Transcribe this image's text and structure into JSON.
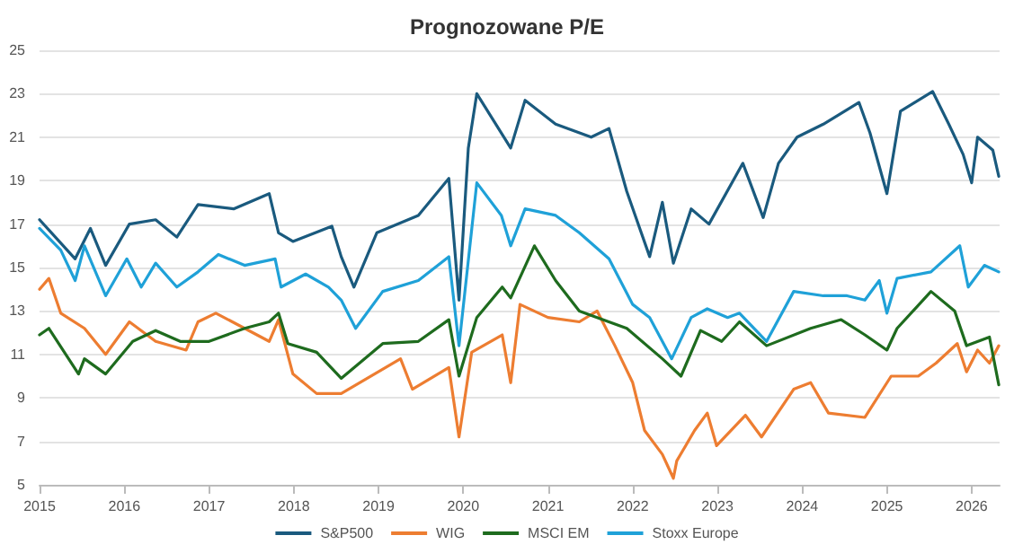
{
  "chart_data": {
    "type": "line",
    "title": "Prognozowane P/E",
    "xlim": [
      2015,
      2026.33
    ],
    "xticks": [
      2015,
      2016,
      2017,
      2018,
      2019,
      2020,
      2021,
      2022,
      2023,
      2024,
      2025,
      2026
    ],
    "ylim": [
      5,
      25
    ],
    "yticks": [
      5,
      7,
      9,
      11,
      13,
      15,
      17,
      19,
      21,
      23,
      25
    ],
    "grid": "y",
    "legend": "bottom",
    "marker": "none",
    "line_style": "solid",
    "series": [
      {
        "name": "S&P500",
        "color": "#1a5a7e",
        "x": [
          2015,
          2015.42,
          2015.6,
          2015.78,
          2016.06,
          2016.37,
          2016.62,
          2016.87,
          2017.29,
          2017.71,
          2017.82,
          2017.99,
          2018.45,
          2018.56,
          2018.71,
          2018.98,
          2019.47,
          2019.83,
          2019.95,
          2020.06,
          2020.16,
          2020.56,
          2020.73,
          2021.09,
          2021.51,
          2021.72,
          2021.93,
          2022.2,
          2022.35,
          2022.48,
          2022.69,
          2022.9,
          2023.3,
          2023.54,
          2023.72,
          2023.94,
          2024.25,
          2024.67,
          2024.8,
          2025,
          2025.16,
          2025.54,
          2025.73,
          2025.9,
          2026,
          2026.07,
          2026.25,
          2026.32
        ],
        "values": [
          17.2,
          15.4,
          16.8,
          15.1,
          17.0,
          17.2,
          16.4,
          17.9,
          17.7,
          18.4,
          16.6,
          16.2,
          16.9,
          15.5,
          14.1,
          16.6,
          17.4,
          19.1,
          13.5,
          20.5,
          23.0,
          20.5,
          22.7,
          21.6,
          21.0,
          21.4,
          18.5,
          15.5,
          18.0,
          15.2,
          17.7,
          17.0,
          19.8,
          17.3,
          19.8,
          21.0,
          21.6,
          22.6,
          21.2,
          18.4,
          22.2,
          23.1,
          21.6,
          20.2,
          18.9,
          21.0,
          20.4,
          19.2
        ]
      },
      {
        "name": "WIG",
        "color": "#ed7d31",
        "x": [
          2015,
          2015.11,
          2015.25,
          2015.53,
          2015.78,
          2016.06,
          2016.37,
          2016.73,
          2016.87,
          2017.08,
          2017.42,
          2017.71,
          2017.82,
          2017.99,
          2018.27,
          2018.56,
          2019.26,
          2019.4,
          2019.83,
          2019.95,
          2020.1,
          2020.46,
          2020.56,
          2020.67,
          2021,
          2021.37,
          2021.58,
          2021.79,
          2022,
          2022.14,
          2022.35,
          2022.48,
          2022.52,
          2022.73,
          2022.88,
          2022.99,
          2023.33,
          2023.52,
          2023.9,
          2024.1,
          2024.31,
          2024.74,
          2025.05,
          2025.37,
          2025.58,
          2025.83,
          2025.94,
          2026.07,
          2026.21,
          2026.32
        ],
        "values": [
          14.0,
          14.5,
          12.9,
          12.2,
          11.0,
          12.5,
          11.6,
          11.2,
          12.5,
          12.9,
          12.2,
          11.6,
          12.6,
          10.1,
          9.2,
          9.2,
          10.8,
          9.4,
          10.4,
          7.2,
          11.1,
          11.9,
          9.7,
          13.3,
          12.7,
          12.5,
          13.0,
          11.4,
          9.7,
          7.5,
          6.4,
          5.3,
          6.1,
          7.5,
          8.3,
          6.8,
          8.2,
          7.2,
          9.4,
          9.7,
          8.3,
          8.1,
          10.0,
          10.0,
          10.6,
          11.5,
          10.2,
          11.2,
          10.6,
          11.4
        ]
      },
      {
        "name": "MSCI EM",
        "color": "#1e6b1e",
        "x": [
          2015,
          2015.11,
          2015.46,
          2015.53,
          2015.78,
          2016.1,
          2016.37,
          2016.66,
          2017,
          2017.42,
          2017.71,
          2017.82,
          2017.93,
          2018.27,
          2018.56,
          2019.05,
          2019.47,
          2019.83,
          2019.95,
          2020.16,
          2020.46,
          2020.56,
          2020.84,
          2021.09,
          2021.37,
          2021.58,
          2021.93,
          2022.35,
          2022.57,
          2022.8,
          2023.05,
          2023.26,
          2023.58,
          2024.1,
          2024.46,
          2024.74,
          2025,
          2025.12,
          2025.52,
          2025.8,
          2025.94,
          2026.21,
          2026.32
        ],
        "values": [
          11.9,
          12.2,
          10.1,
          10.8,
          10.1,
          11.6,
          12.1,
          11.6,
          11.6,
          12.2,
          12.5,
          12.9,
          11.5,
          11.1,
          9.9,
          11.5,
          11.6,
          12.6,
          10.0,
          12.7,
          14.1,
          13.6,
          16.0,
          14.4,
          13.0,
          12.7,
          12.2,
          10.8,
          10.0,
          12.1,
          11.6,
          12.5,
          11.4,
          12.2,
          12.6,
          11.9,
          11.2,
          12.2,
          13.9,
          13.0,
          11.4,
          11.8,
          9.6
        ]
      },
      {
        "name": "Stoxx Europe",
        "color": "#1fa1d8",
        "x": [
          2015,
          2015.25,
          2015.42,
          2015.53,
          2015.78,
          2016.03,
          2016.2,
          2016.37,
          2016.62,
          2016.87,
          2017.11,
          2017.42,
          2017.78,
          2017.85,
          2018.14,
          2018.41,
          2018.56,
          2018.73,
          2019.05,
          2019.47,
          2019.83,
          2019.95,
          2020.16,
          2020.45,
          2020.56,
          2020.73,
          2021.09,
          2021.37,
          2021.72,
          2022,
          2022.2,
          2022.46,
          2022.69,
          2022.88,
          2023.12,
          2023.26,
          2023.58,
          2023.9,
          2024.25,
          2024.53,
          2024.74,
          2024.91,
          2025,
          2025.12,
          2025.52,
          2025.86,
          2025.96,
          2026.15,
          2026.32
        ],
        "values": [
          16.8,
          15.8,
          14.4,
          16.0,
          13.7,
          15.4,
          14.1,
          15.2,
          14.1,
          14.8,
          15.6,
          15.1,
          15.4,
          14.1,
          14.7,
          14.1,
          13.5,
          12.2,
          13.9,
          14.4,
          15.5,
          11.4,
          18.9,
          17.4,
          16.0,
          17.7,
          17.4,
          16.6,
          15.4,
          13.3,
          12.7,
          10.8,
          12.7,
          13.1,
          12.7,
          12.9,
          11.6,
          13.9,
          13.7,
          13.7,
          13.5,
          14.4,
          12.9,
          14.5,
          14.8,
          16.0,
          14.1,
          15.1,
          14.8
        ]
      }
    ]
  }
}
